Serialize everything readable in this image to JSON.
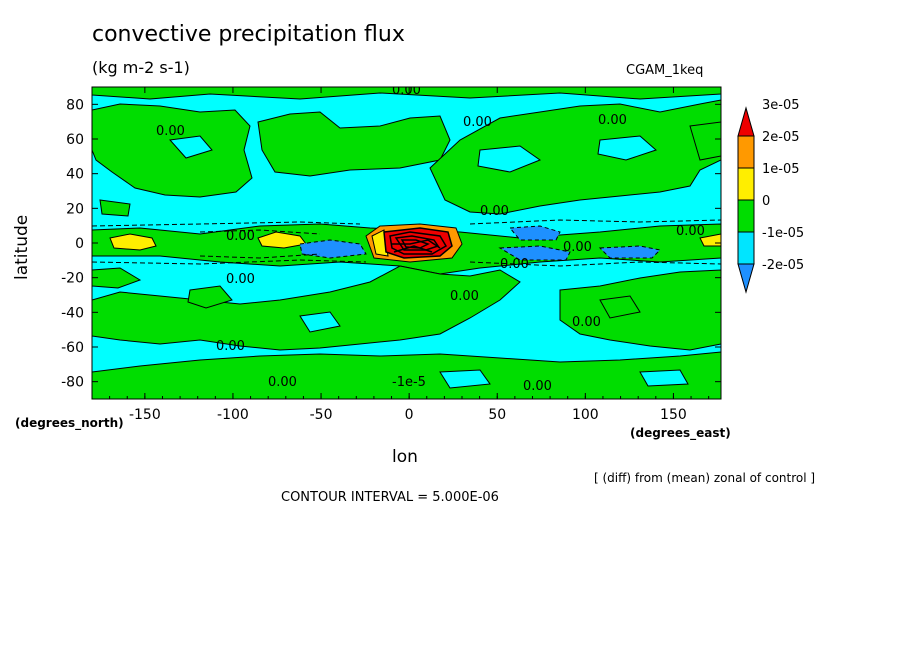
{
  "header": {
    "title": "convective precipitation flux",
    "units": "(kg m-2 s-1)",
    "dataset": "CGAM_1keq"
  },
  "footer": {
    "note": "[ (diff) from (mean) zonal of control ]",
    "contour_interval": "CONTOUR INTERVAL = 5.000E-06"
  },
  "chart_data": {
    "type": "heatmap",
    "title": "convective precipitation flux",
    "subtitle": "(kg m-2 s-1)",
    "xlabel": "lon",
    "xunits": "(degrees_east)",
    "ylabel": "latitude",
    "yunits": "(degrees_north)",
    "xlim": [
      -180,
      177
    ],
    "ylim": [
      -90,
      90
    ],
    "xticks": [
      -150,
      -100,
      -50,
      0,
      50,
      100,
      150
    ],
    "xtick_labels": [
      "-150",
      "-100",
      "-50",
      "0",
      "50",
      "100",
      "150"
    ],
    "yticks": [
      -80,
      -60,
      -40,
      -20,
      0,
      20,
      40,
      60,
      80
    ],
    "ytick_labels": [
      "-80",
      "-60",
      "-40",
      "-20",
      "0",
      "20",
      "40",
      "60",
      "80"
    ],
    "colorbar": {
      "levels": [
        -2e-05,
        -1e-05,
        0,
        1e-05,
        2e-05,
        3e-05
      ],
      "labels": [
        "-2e-05",
        "-1e-05",
        "0",
        "1e-05",
        "2e-05",
        "3e-05"
      ],
      "colors": [
        "#1e90ff",
        "#00e5ff",
        "#00dd00",
        "#ffee00",
        "#ff9900",
        "#ee0000"
      ]
    },
    "contour_labels": [
      "0.00",
      "0.00",
      "0.00",
      "0.00",
      "0.00",
      "0.00",
      "0.00",
      "0.00",
      "0.00",
      "0.00",
      "0.00",
      "0.00",
      "0.00",
      "0.00",
      "-1e-5"
    ],
    "background_color": "#00ffff",
    "positive_color": "#00dd00"
  }
}
